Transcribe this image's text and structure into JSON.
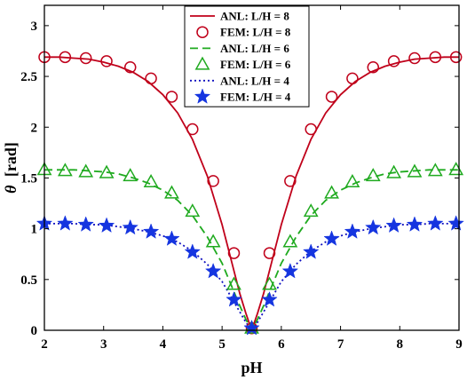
{
  "chart_data": {
    "type": "line",
    "title": "",
    "xlabel": "pH",
    "ylabel_symbol": "θ",
    "ylabel_unit": "[rad]",
    "xlim": [
      2,
      9
    ],
    "ylim": [
      0,
      3.2
    ],
    "xticks": [
      2,
      3,
      4,
      5,
      6,
      7,
      8,
      9
    ],
    "yticks": [
      0,
      0.5,
      1,
      1.5,
      2,
      2.5,
      3
    ],
    "ytick_labels": [
      "0",
      "0.5",
      "1",
      "1.5",
      "2",
      "2.5",
      "3"
    ],
    "grid": false,
    "legend_position": "top-center",
    "line_x": [
      2.0,
      2.25,
      2.5,
      2.75,
      3.0,
      3.25,
      3.5,
      3.75,
      4.0,
      4.25,
      4.5,
      4.75,
      5.0,
      5.15,
      5.3,
      5.4,
      5.5,
      5.6,
      5.7,
      5.85,
      6.0,
      6.25,
      6.5,
      6.75,
      7.0,
      7.25,
      7.5,
      7.75,
      8.0,
      8.25,
      8.5,
      8.75,
      9.0
    ],
    "marker_x": [
      2.0,
      2.35,
      2.7,
      3.05,
      3.45,
      3.8,
      4.15,
      4.5,
      4.85,
      5.2,
      5.5,
      5.8,
      6.15,
      6.5,
      6.85,
      7.2,
      7.55,
      7.9,
      8.25,
      8.6,
      8.95
    ],
    "series": [
      {
        "name": "ANL: L/H = 8",
        "kind": "line",
        "style": "solid",
        "color": "#c0001a",
        "y": [
          2.69,
          2.69,
          2.68,
          2.67,
          2.64,
          2.6,
          2.54,
          2.45,
          2.32,
          2.14,
          1.88,
          1.52,
          1.04,
          0.7,
          0.36,
          0.17,
          0.0,
          0.17,
          0.36,
          0.7,
          1.04,
          1.52,
          1.88,
          2.14,
          2.32,
          2.45,
          2.54,
          2.6,
          2.64,
          2.67,
          2.68,
          2.69,
          2.69
        ]
      },
      {
        "name": "FEM: L/H = 8",
        "kind": "markers",
        "marker": "circle",
        "color": "#c0001a",
        "y": [
          2.69,
          2.69,
          2.68,
          2.65,
          2.59,
          2.48,
          2.3,
          1.98,
          1.47,
          0.76,
          0.02,
          0.76,
          1.47,
          1.98,
          2.3,
          2.48,
          2.59,
          2.65,
          2.68,
          2.69,
          2.69
        ]
      },
      {
        "name": "ANL: L/H = 6",
        "kind": "line",
        "style": "dashed",
        "color": "#1faa1f",
        "y": [
          1.58,
          1.58,
          1.58,
          1.57,
          1.56,
          1.54,
          1.5,
          1.45,
          1.38,
          1.28,
          1.13,
          0.92,
          0.66,
          0.45,
          0.24,
          0.11,
          0.0,
          0.11,
          0.24,
          0.45,
          0.66,
          0.92,
          1.13,
          1.28,
          1.38,
          1.45,
          1.5,
          1.54,
          1.56,
          1.57,
          1.58,
          1.58,
          1.58
        ]
      },
      {
        "name": "FEM: L/H = 6",
        "kind": "markers",
        "marker": "triangle",
        "color": "#1faa1f",
        "y": [
          1.58,
          1.57,
          1.56,
          1.55,
          1.52,
          1.46,
          1.35,
          1.17,
          0.87,
          0.45,
          0.02,
          0.45,
          0.87,
          1.17,
          1.35,
          1.46,
          1.52,
          1.55,
          1.56,
          1.57,
          1.58
        ]
      },
      {
        "name": "ANL: L/H = 4",
        "kind": "line",
        "style": "dotted",
        "color": "#1010c0",
        "y": [
          1.05,
          1.05,
          1.05,
          1.04,
          1.04,
          1.02,
          1.0,
          0.97,
          0.93,
          0.87,
          0.78,
          0.65,
          0.48,
          0.33,
          0.18,
          0.08,
          0.0,
          0.08,
          0.18,
          0.33,
          0.48,
          0.65,
          0.78,
          0.87,
          0.93,
          0.97,
          1.0,
          1.02,
          1.04,
          1.04,
          1.05,
          1.05,
          1.05
        ]
      },
      {
        "name": "FEM: L/H = 4",
        "kind": "markers",
        "marker": "star",
        "color": "#1535e0",
        "y": [
          1.05,
          1.05,
          1.04,
          1.03,
          1.01,
          0.97,
          0.9,
          0.77,
          0.58,
          0.3,
          0.02,
          0.3,
          0.58,
          0.77,
          0.9,
          0.97,
          1.01,
          1.03,
          1.04,
          1.05,
          1.05
        ]
      }
    ]
  }
}
